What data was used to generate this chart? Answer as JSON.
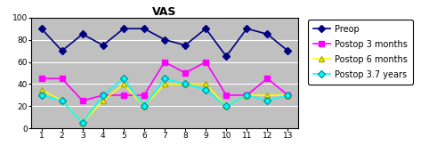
{
  "title": "VAS",
  "x": [
    1,
    2,
    3,
    4,
    5,
    6,
    7,
    8,
    9,
    10,
    11,
    12,
    13
  ],
  "preop": [
    90,
    70,
    85,
    75,
    90,
    90,
    80,
    75,
    90,
    65,
    90,
    85,
    70
  ],
  "postop3m": [
    45,
    45,
    25,
    30,
    30,
    30,
    60,
    50,
    60,
    30,
    30,
    45,
    30
  ],
  "postop6m": [
    35,
    25,
    5,
    25,
    40,
    20,
    40,
    40,
    40,
    20,
    30,
    30,
    30
  ],
  "postop37y": [
    30,
    25,
    5,
    30,
    45,
    20,
    45,
    40,
    35,
    20,
    30,
    25,
    30
  ],
  "colors": {
    "preop": "#000080",
    "postop3m": "#FF00FF",
    "postop6m": "#FFFF00",
    "postop37y": "#00FFFF"
  },
  "legend_labels": [
    "Preop",
    "Postop 3 months",
    "Postop 6 months",
    "Postop 3.7 years"
  ],
  "ylim": [
    0,
    100
  ],
  "yticks": [
    0,
    20,
    40,
    60,
    80,
    100
  ],
  "xticks": [
    1,
    2,
    3,
    4,
    5,
    6,
    7,
    8,
    9,
    10,
    11,
    12,
    13
  ],
  "bg_color": "#C0C0C0",
  "marker_preop": "D",
  "marker_postop3m": "s",
  "marker_postop6m": "^",
  "marker_postop37y": "D",
  "marker_size": 4,
  "linewidth": 1.2,
  "title_fontsize": 9,
  "tick_fontsize": 6.5,
  "legend_fontsize": 7
}
